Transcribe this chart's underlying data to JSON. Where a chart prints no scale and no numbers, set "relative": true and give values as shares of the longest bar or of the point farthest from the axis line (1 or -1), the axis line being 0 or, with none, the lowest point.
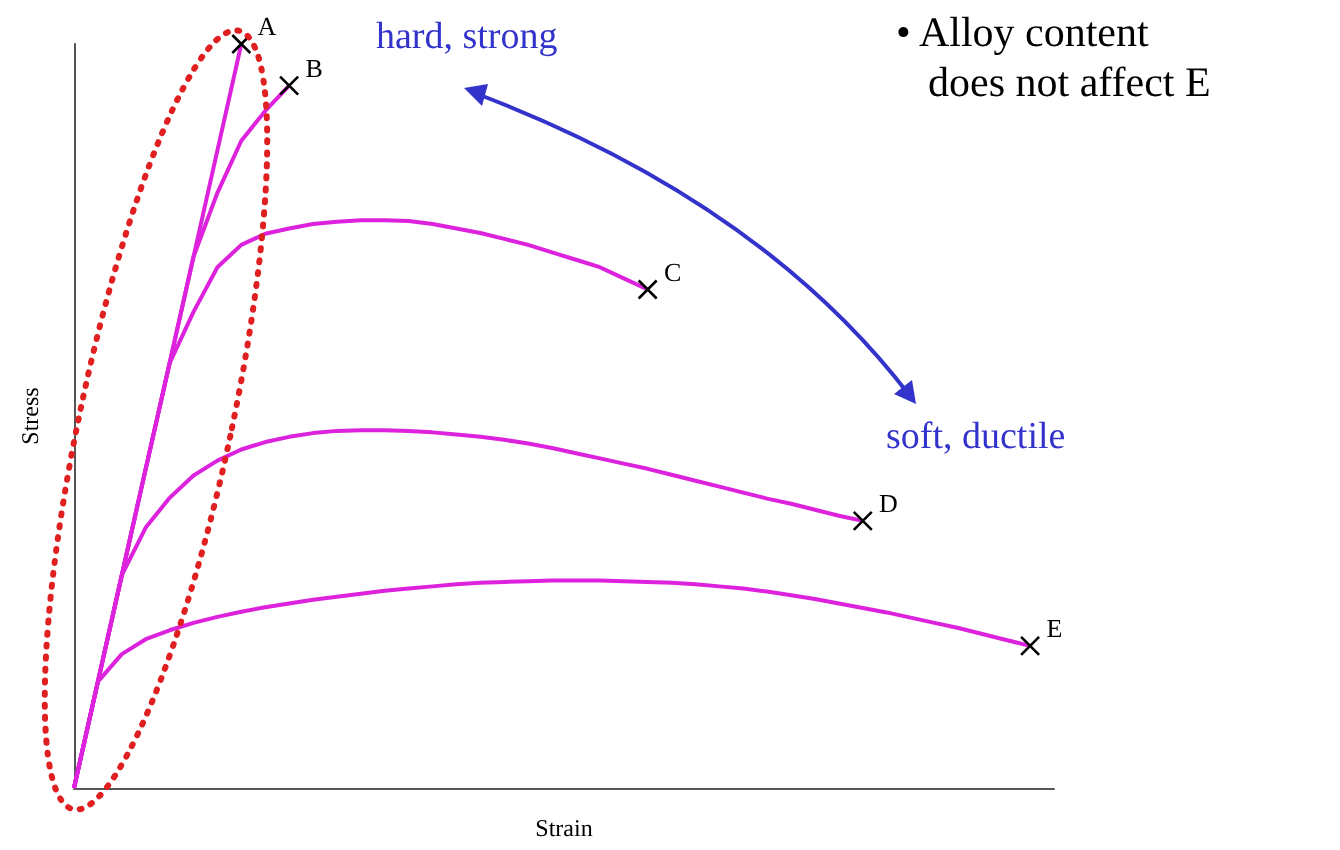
{
  "chart_data": {
    "type": "line",
    "relative": true,
    "xlabel": "Strain",
    "ylabel": "Stress",
    "line_style": "solid",
    "grid": false,
    "legend": false,
    "categories": [
      null,
      null,
      null,
      null,
      null,
      null,
      null,
      null,
      null,
      null,
      null,
      null,
      null,
      null,
      null,
      null,
      null,
      null,
      null,
      null,
      null,
      null,
      null,
      null,
      null,
      null,
      null,
      null,
      null,
      null,
      null,
      null,
      null,
      null,
      null,
      null,
      null,
      null,
      null,
      null,
      null,
      null
    ],
    "series": [
      {
        "name": "A",
        "color": "#dd22dd",
        "values": [
          0,
          0.143,
          0.286,
          0.429,
          0.571,
          0.714,
          0.857,
          1,
          null,
          null,
          null,
          null,
          null,
          null,
          null,
          null,
          null,
          null,
          null,
          null,
          null,
          null,
          null,
          null,
          null,
          null,
          null,
          null,
          null,
          null,
          null,
          null,
          null,
          null,
          null,
          null,
          null,
          null,
          null,
          null,
          null,
          null
        ]
      },
      {
        "name": "B",
        "color": "#dd22dd",
        "values": [
          0,
          0.143,
          0.286,
          0.429,
          0.571,
          0.714,
          0.8,
          0.87,
          0.91,
          0.944,
          null,
          null,
          null,
          null,
          null,
          null,
          null,
          null,
          null,
          null,
          null,
          null,
          null,
          null,
          null,
          null,
          null,
          null,
          null,
          null,
          null,
          null,
          null,
          null,
          null,
          null,
          null,
          null,
          null,
          null,
          null,
          null
        ]
      },
      {
        "name": "C",
        "color": "#dd22dd",
        "values": [
          0,
          0.143,
          0.286,
          0.429,
          0.571,
          0.64,
          0.7,
          0.73,
          0.745,
          0.752,
          0.758,
          0.761,
          0.763,
          0.763,
          0.762,
          0.758,
          0.752,
          0.746,
          0.738,
          0.73,
          0.72,
          0.71,
          0.7,
          0.685,
          0.67,
          null,
          null,
          null,
          null,
          null,
          null,
          null,
          null,
          null,
          null,
          null,
          null,
          null,
          null,
          null,
          null,
          null
        ]
      },
      {
        "name": "D",
        "color": "#dd22dd",
        "values": [
          0,
          0.143,
          0.286,
          0.35,
          0.39,
          0.42,
          0.44,
          0.455,
          0.465,
          0.472,
          0.477,
          0.48,
          0.481,
          0.481,
          0.48,
          0.478,
          0.475,
          0.472,
          0.468,
          0.463,
          0.457,
          0.45,
          0.443,
          0.436,
          0.429,
          0.421,
          0.413,
          0.405,
          0.397,
          0.389,
          0.382,
          0.374,
          0.366,
          0.359,
          null,
          null,
          null,
          null,
          null,
          null,
          null,
          null
        ]
      },
      {
        "name": "E",
        "color": "#dd22dd",
        "values": [
          0,
          0.143,
          0.18,
          0.2,
          0.212,
          0.222,
          0.23,
          0.237,
          0.243,
          0.248,
          0.253,
          0.257,
          0.261,
          0.265,
          0.268,
          0.271,
          0.274,
          0.276,
          0.277,
          0.278,
          0.279,
          0.279,
          0.279,
          0.278,
          0.277,
          0.276,
          0.274,
          0.271,
          0.268,
          0.264,
          0.259,
          0.254,
          0.248,
          0.242,
          0.236,
          0.229,
          0.222,
          0.215,
          0.207,
          0.199,
          0.191,
          null
        ]
      }
    ],
    "annotations": [
      "hard, strong",
      "soft, ductile",
      "• Alloy content does not affect E"
    ]
  }
}
